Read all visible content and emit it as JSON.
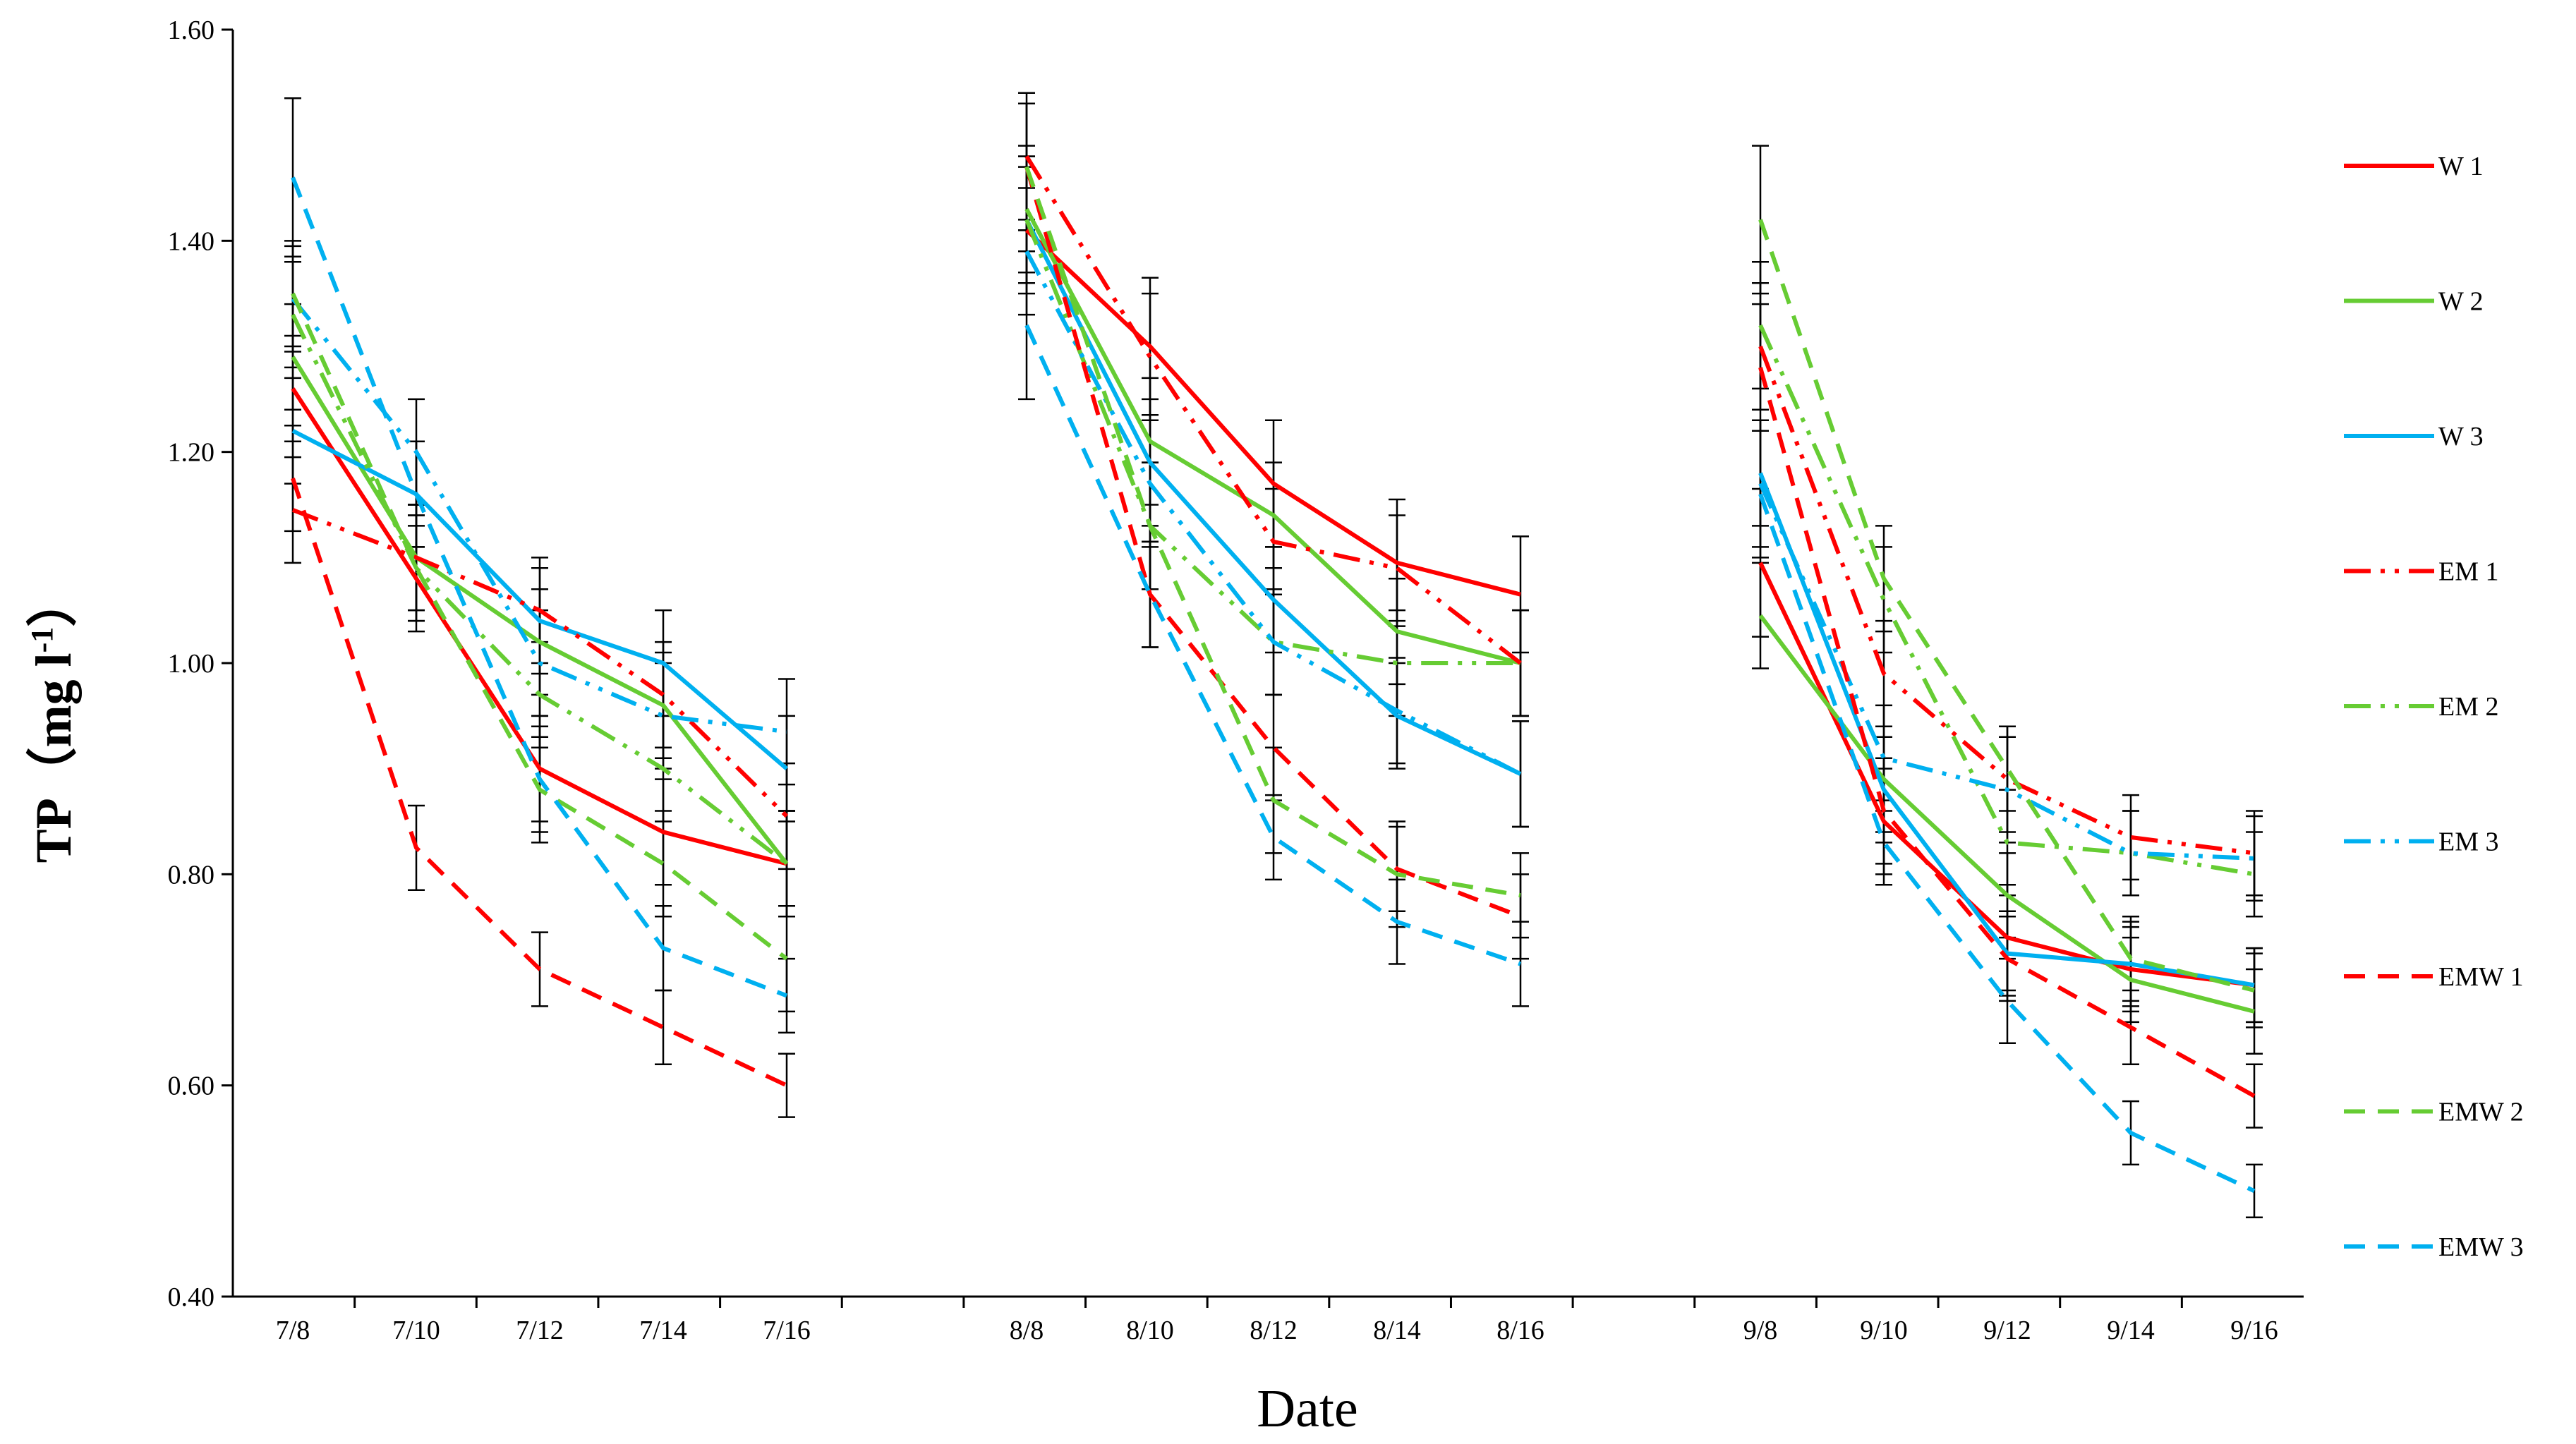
{
  "chart_data": {
    "type": "line",
    "xlabel": "Date",
    "ylabel_main": "TP（mg l",
    "ylabel_sup": "-1",
    "ylabel_close": "）",
    "ylim": [
      0.4,
      1.6
    ],
    "yticks": [
      "0.40",
      "0.60",
      "0.80",
      "1.00",
      "1.20",
      "1.40",
      "1.60"
    ],
    "groups": [
      [
        "7/8",
        "7/10",
        "7/12",
        "7/14",
        "7/16"
      ],
      [
        "8/8",
        "8/10",
        "8/12",
        "8/14",
        "8/16"
      ],
      [
        "9/8",
        "9/10",
        "9/12",
        "9/14",
        "9/16"
      ]
    ],
    "series": [
      {
        "name": "W 1",
        "color": "#FF0000",
        "style": "solid",
        "values": [
          [
            1.26,
            1.08,
            0.9,
            0.84,
            0.81
          ],
          [
            1.41,
            1.3,
            1.17,
            1.095,
            1.065
          ],
          [
            1.095,
            0.85,
            0.74,
            0.71,
            0.695
          ]
        ],
        "errors": [
          [
            0.05,
            0.05,
            0.05,
            0.05,
            0.05
          ],
          [
            0.06,
            0.065,
            0.06,
            0.06,
            0.055
          ],
          [
            0.07,
            0.05,
            0.05,
            0.04,
            0.035
          ]
        ]
      },
      {
        "name": "W 2",
        "color": "#66CC33",
        "style": "solid",
        "values": [
          [
            1.29,
            1.1,
            1.02,
            0.96,
            0.81
          ],
          [
            1.43,
            1.21,
            1.14,
            1.03,
            1.0
          ],
          [
            1.045,
            0.89,
            0.78,
            0.7,
            0.67
          ]
        ],
        "errors": [
          [
            0.05,
            0.05,
            0.05,
            0.05,
            0.05
          ],
          [
            0.06,
            0.06,
            0.05,
            0.05,
            0.05
          ],
          [
            0.05,
            0.05,
            0.04,
            0.04,
            0.04
          ]
        ]
      },
      {
        "name": "W 3",
        "color": "#00B0F0",
        "style": "solid",
        "values": [
          [
            1.22,
            1.16,
            1.04,
            1.0,
            0.9
          ],
          [
            1.42,
            1.19,
            1.06,
            0.95,
            0.895
          ],
          [
            1.18,
            0.88,
            0.725,
            0.715,
            0.695
          ]
        ],
        "errors": [
          [
            0.05,
            0.05,
            0.05,
            0.05,
            0.05
          ],
          [
            0.06,
            0.06,
            0.05,
            0.05,
            0.05
          ],
          [
            0.05,
            0.05,
            0.04,
            0.04,
            0.035
          ]
        ]
      },
      {
        "name": "EM 1",
        "color": "#FF0000",
        "style": "dashdotdot",
        "values": [
          [
            1.145,
            1.1,
            1.05,
            0.97,
            0.855
          ],
          [
            1.48,
            1.29,
            1.115,
            1.09,
            1.0
          ],
          [
            1.3,
            0.99,
            0.89,
            0.835,
            0.82
          ]
        ],
        "errors": [
          [
            0.05,
            0.05,
            0.05,
            0.05,
            0.05
          ],
          [
            0.06,
            0.06,
            0.05,
            0.05,
            0.05
          ],
          [
            0.06,
            0.05,
            0.05,
            0.04,
            0.04
          ]
        ]
      },
      {
        "name": "EM 2",
        "color": "#66CC33",
        "style": "dashdotdot",
        "values": [
          [
            1.33,
            1.09,
            0.97,
            0.9,
            0.81
          ],
          [
            1.42,
            1.13,
            1.02,
            1.0,
            1.0
          ],
          [
            1.32,
            1.06,
            0.83,
            0.82,
            0.8
          ]
        ],
        "errors": [
          [
            0.05,
            0.05,
            0.05,
            0.05,
            0.05
          ],
          [
            0.06,
            0.06,
            0.05,
            0.05,
            0.05
          ],
          [
            0.06,
            0.05,
            0.05,
            0.04,
            0.04
          ]
        ]
      },
      {
        "name": "EM 3",
        "color": "#00B0F0",
        "style": "dashdotdot",
        "values": [
          [
            1.345,
            1.2,
            1.0,
            0.95,
            0.935
          ],
          [
            1.39,
            1.17,
            1.02,
            0.955,
            0.895
          ],
          [
            1.17,
            0.91,
            0.88,
            0.82,
            0.815
          ]
        ],
        "errors": [
          [
            0.05,
            0.05,
            0.05,
            0.05,
            0.05
          ],
          [
            0.06,
            0.06,
            0.05,
            0.05,
            0.05
          ],
          [
            0.06,
            0.05,
            0.05,
            0.04,
            0.04
          ]
        ]
      },
      {
        "name": "EMW 1",
        "color": "#FF0000",
        "style": "dashed",
        "values": [
          [
            1.175,
            0.825,
            0.71,
            0.655,
            0.6
          ],
          [
            1.47,
            1.065,
            0.92,
            0.805,
            0.76
          ],
          [
            1.28,
            0.86,
            0.72,
            0.655,
            0.59
          ]
        ],
        "errors": [
          [
            0.05,
            0.04,
            0.035,
            0.035,
            0.03
          ],
          [
            0.06,
            0.05,
            0.05,
            0.04,
            0.04
          ],
          [
            0.06,
            0.05,
            0.04,
            0.035,
            0.03
          ]
        ]
      },
      {
        "name": "EMW 2",
        "color": "#66CC33",
        "style": "dashed",
        "values": [
          [
            1.35,
            1.09,
            0.88,
            0.81,
            0.72
          ],
          [
            1.47,
            1.13,
            0.87,
            0.8,
            0.78
          ],
          [
            1.42,
            1.08,
            0.9,
            0.72,
            0.69
          ]
        ],
        "errors": [
          [
            0.05,
            0.05,
            0.05,
            0.05,
            0.05
          ],
          [
            0.06,
            0.06,
            0.05,
            0.05,
            0.04
          ],
          [
            0.07,
            0.05,
            0.04,
            0.04,
            0.035
          ]
        ]
      },
      {
        "name": "EMW 3",
        "color": "#00B0F0",
        "style": "dashed",
        "values": [
          [
            1.46,
            1.16,
            0.89,
            0.73,
            0.685
          ],
          [
            1.32,
            1.065,
            0.835,
            0.755,
            0.715
          ],
          [
            1.16,
            0.83,
            0.68,
            0.555,
            0.5
          ]
        ],
        "errors": [
          [
            0.075,
            0.05,
            0.05,
            0.04,
            0.035
          ],
          [
            0.07,
            0.05,
            0.04,
            0.04,
            0.04
          ],
          [
            0.06,
            0.04,
            0.04,
            0.03,
            0.025
          ]
        ]
      }
    ],
    "legend_position": "right"
  }
}
